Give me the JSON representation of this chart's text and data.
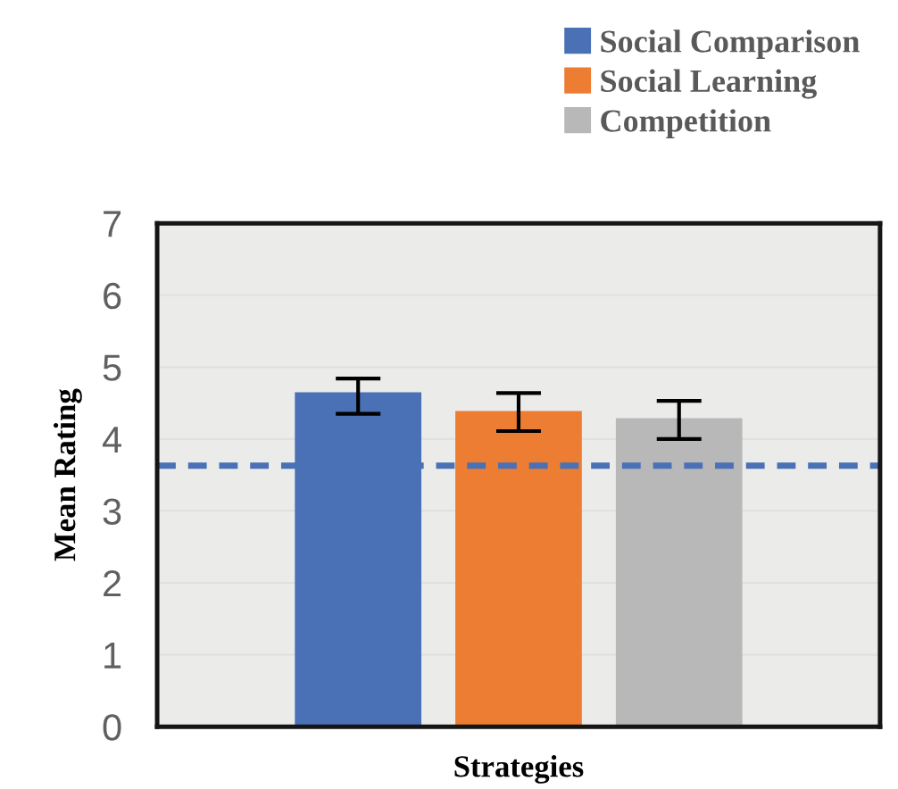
{
  "chart_data": {
    "type": "bar",
    "xlabel": "Strategies",
    "ylabel": "Mean Rating",
    "categories": [
      null
    ],
    "series": [
      {
        "name": "Social Comparison",
        "color": "#4a70b5",
        "values": [
          4.65
        ],
        "errors": [
          [
            4.35,
            4.84
          ]
        ]
      },
      {
        "name": "Social Learning",
        "color": "#ec7d32",
        "values": [
          4.39
        ],
        "errors": [
          [
            4.11,
            4.64
          ]
        ]
      },
      {
        "name": "Competition",
        "color": "#b8b8b8",
        "values": [
          4.29
        ],
        "errors": [
          [
            4.0,
            4.53
          ]
        ]
      }
    ],
    "ylim": [
      0,
      7
    ],
    "yticks": [
      0,
      1,
      2,
      3,
      4,
      5,
      6,
      7
    ],
    "grid": "y",
    "legend": "top right",
    "ref_lines": [
      {
        "axis": "y",
        "value": 3.63,
        "color": "#4a70b5",
        "line_style": "dashed"
      }
    ]
  }
}
